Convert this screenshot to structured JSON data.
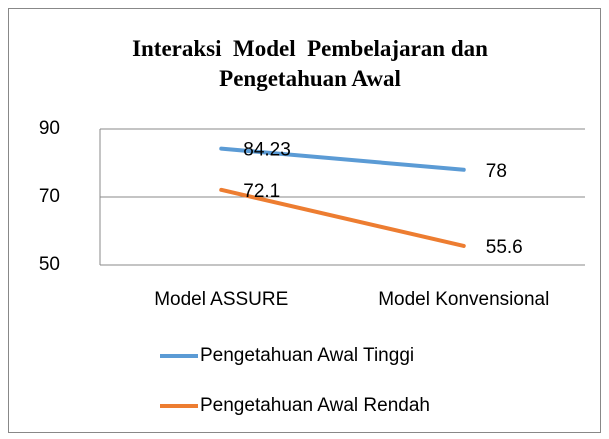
{
  "chart_data": {
    "type": "line",
    "title": "Interaksi  Model  Pembelajaran dan Pengetahuan Awal",
    "categories": [
      "Model ASSURE",
      "Model Konvensional"
    ],
    "series": [
      {
        "name": "Pengetahuan Awal Tinggi",
        "color": "#5b9bd5",
        "values": [
          84.23,
          78
        ]
      },
      {
        "name": "Pengetahuan Awal Rendah",
        "color": "#ed7d31",
        "values": [
          72.1,
          55.6
        ]
      }
    ],
    "ylim": [
      50,
      90
    ],
    "yticks": [
      50,
      70,
      90
    ],
    "grid": true,
    "legend": "bottom"
  }
}
